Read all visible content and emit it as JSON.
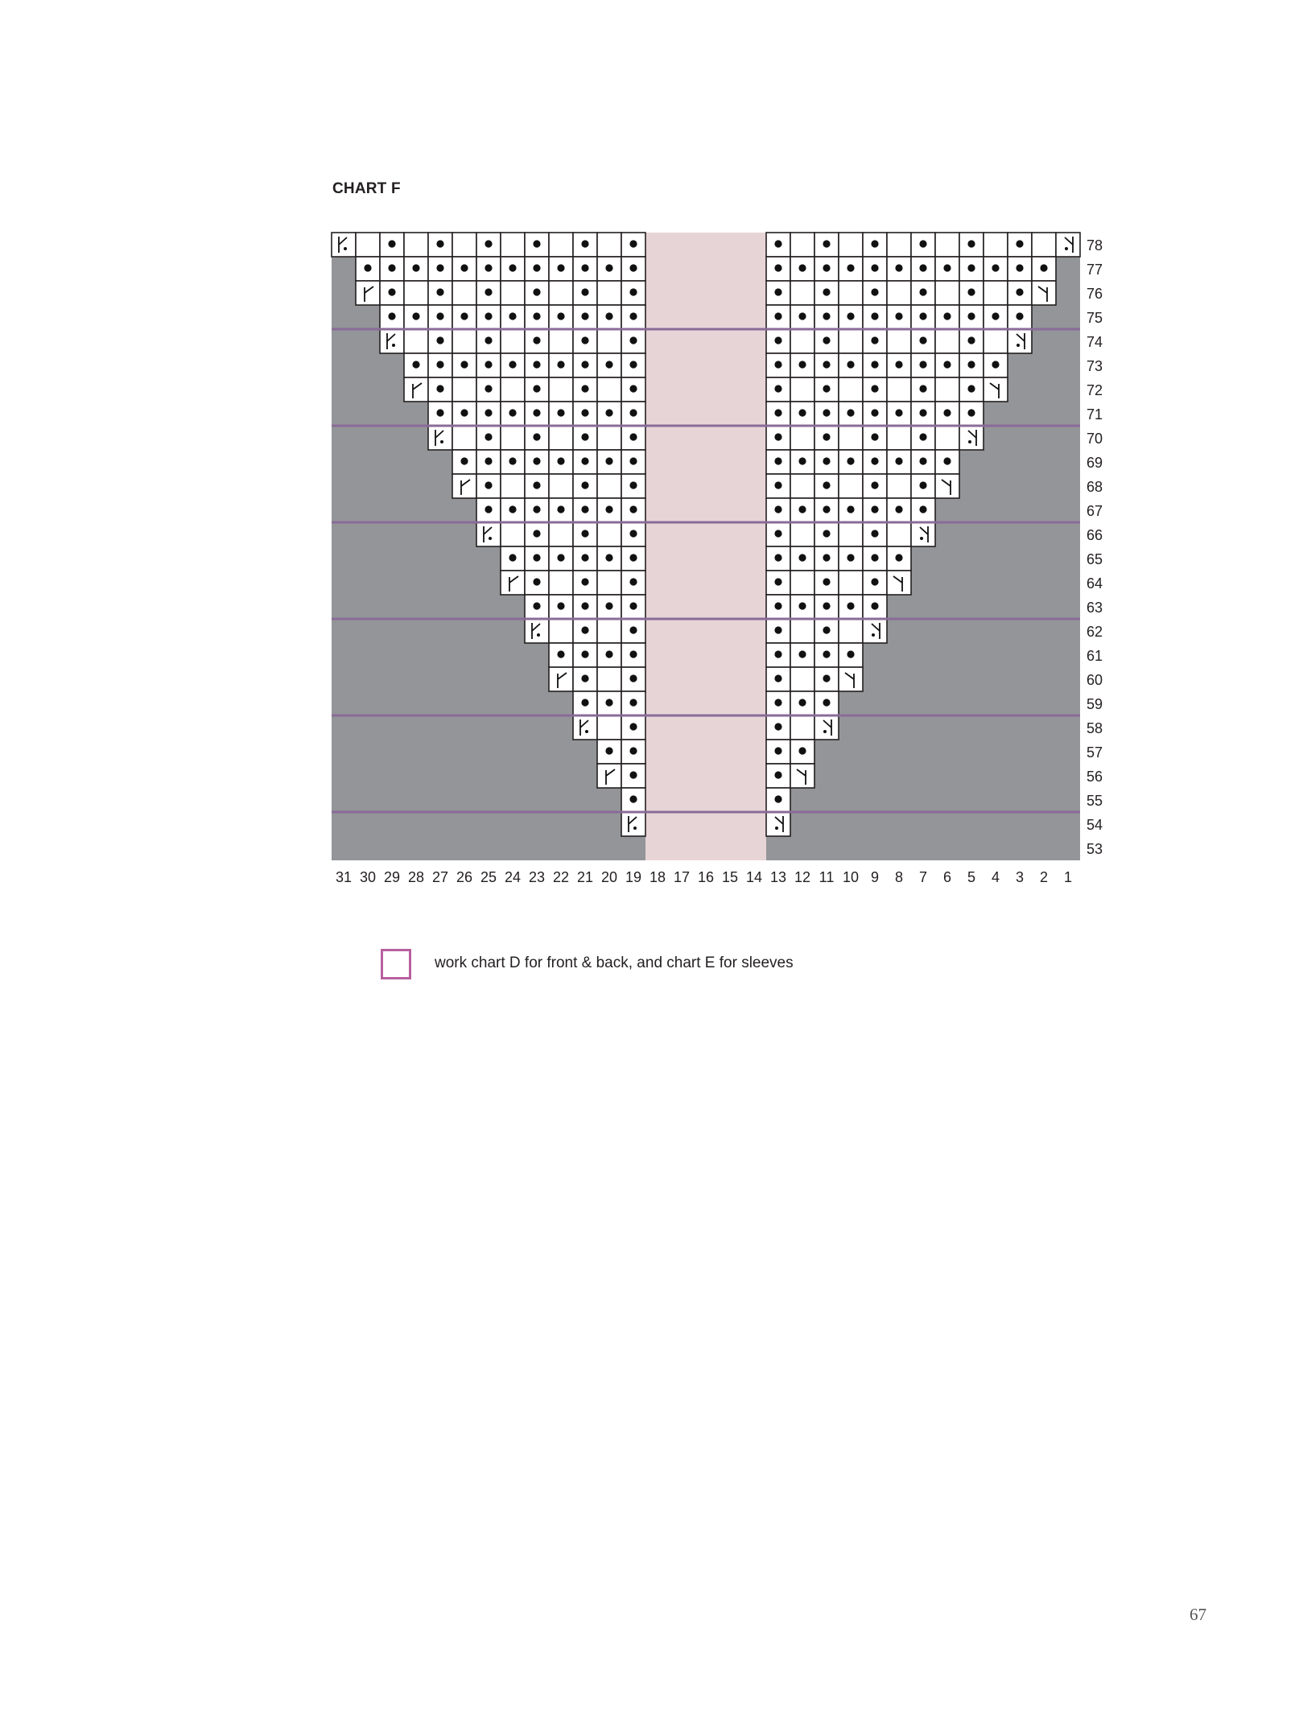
{
  "chart_data": {
    "type": "table",
    "title": "CHART F",
    "columns_left_to_right": [
      31,
      30,
      29,
      28,
      27,
      26,
      25,
      24,
      23,
      22,
      21,
      20,
      19,
      18,
      17,
      16,
      15,
      14,
      13,
      12,
      11,
      10,
      9,
      8,
      7,
      6,
      5,
      4,
      3,
      2,
      1
    ],
    "row_label_side": "right",
    "pink_columns": [
      18,
      17,
      16,
      15,
      14
    ],
    "symbol_key": {
      "g": "no stitch (gray)",
      "w": "blank square",
      "o": "purl dot",
      "K": "left-slant decrease with dot",
      "k": "right-slant decrease with dot",
      "Y": "left-slant increase",
      "y": "right-slant increase"
    },
    "purple_lines_above_rows": [
      74,
      70,
      66,
      62,
      58,
      54
    ],
    "rows": [
      {
        "row": 78,
        "left": "Kwowowowowowo",
        "right": "owowowowowowk"
      },
      {
        "row": 77,
        "left": "goooooooooooo",
        "right": "oooooooooooog"
      },
      {
        "row": 76,
        "left": "gYowowowowowo",
        "right": "owowowowowoyg"
      },
      {
        "row": 75,
        "left": "ggooooooooooo",
        "right": "ooooooooooogg"
      },
      {
        "row": 74,
        "left": "ggKwowowowowo",
        "right": "owowowowowkgg"
      },
      {
        "row": 73,
        "left": "gggoooooooooo",
        "right": "ooooooooooggg"
      },
      {
        "row": 72,
        "left": "gggYowowowowo",
        "right": "owowowowoyggg"
      },
      {
        "row": 71,
        "left": "ggggooooooooo",
        "right": "ooooooooogggg"
      },
      {
        "row": 70,
        "left": "ggggKwowowowo",
        "right": "owowowowkgggg"
      },
      {
        "row": 69,
        "left": "gggggoooooooo",
        "right": "oooooooogggggg"
      },
      {
        "row": 68,
        "left": "gggggYowowowo",
        "right": "owowowoyggggg"
      },
      {
        "row": 67,
        "left": "ggggggooooooo",
        "right": "ooooooogggggg"
      },
      {
        "row": 66,
        "left": "ggggggKwowowo",
        "right": "owowowkgggggg"
      },
      {
        "row": 65,
        "left": "gggggggoooooo",
        "right": "ooooooggggggg"
      },
      {
        "row": 64,
        "left": "gggggggYowowo",
        "right": "owowoyggggggg"
      },
      {
        "row": 63,
        "left": "ggggggggooooo",
        "right": "ooooogggggggg"
      },
      {
        "row": 62,
        "left": "ggggggggKwowo",
        "right": "owowkgggggggg"
      },
      {
        "row": 61,
        "left": "gggggggggoooo",
        "right": "oooogggggggggg"
      },
      {
        "row": 60,
        "left": "gggggggggYowo",
        "right": "owoyggggggggg"
      },
      {
        "row": 59,
        "left": "ggggggggggooo",
        "right": "ooogggggggggg"
      },
      {
        "row": 58,
        "left": "ggggggggggKwo",
        "right": "owkgggggggggg"
      },
      {
        "row": 57,
        "left": "gggggggggggoo",
        "right": "ooggggggggggg"
      },
      {
        "row": 56,
        "left": "gggggggggggYo",
        "right": "oyggggggggggg"
      },
      {
        "row": 55,
        "left": "ggggggggggggo",
        "right": "ogggggggggggg"
      },
      {
        "row": 54,
        "left": "ggggggggggggK",
        "right": "kgggggggggggg"
      },
      {
        "row": 53,
        "left": "ggggggggggggg",
        "right": "ggggggggggggg"
      }
    ],
    "legend": [
      {
        "swatch": "pink-outline-square",
        "label": "work chart D for front & back, and chart E for sleeves"
      }
    ]
  },
  "colors": {
    "gray": "#939598",
    "pink": "#e7d4d7",
    "purple_line": "#8a6b98",
    "legend_border": "#b7609f",
    "grid": "#231f20"
  },
  "page": {
    "title": "CHART F",
    "legend_text": "work chart D for front & back, and chart E for sleeves",
    "page_number": "67"
  }
}
